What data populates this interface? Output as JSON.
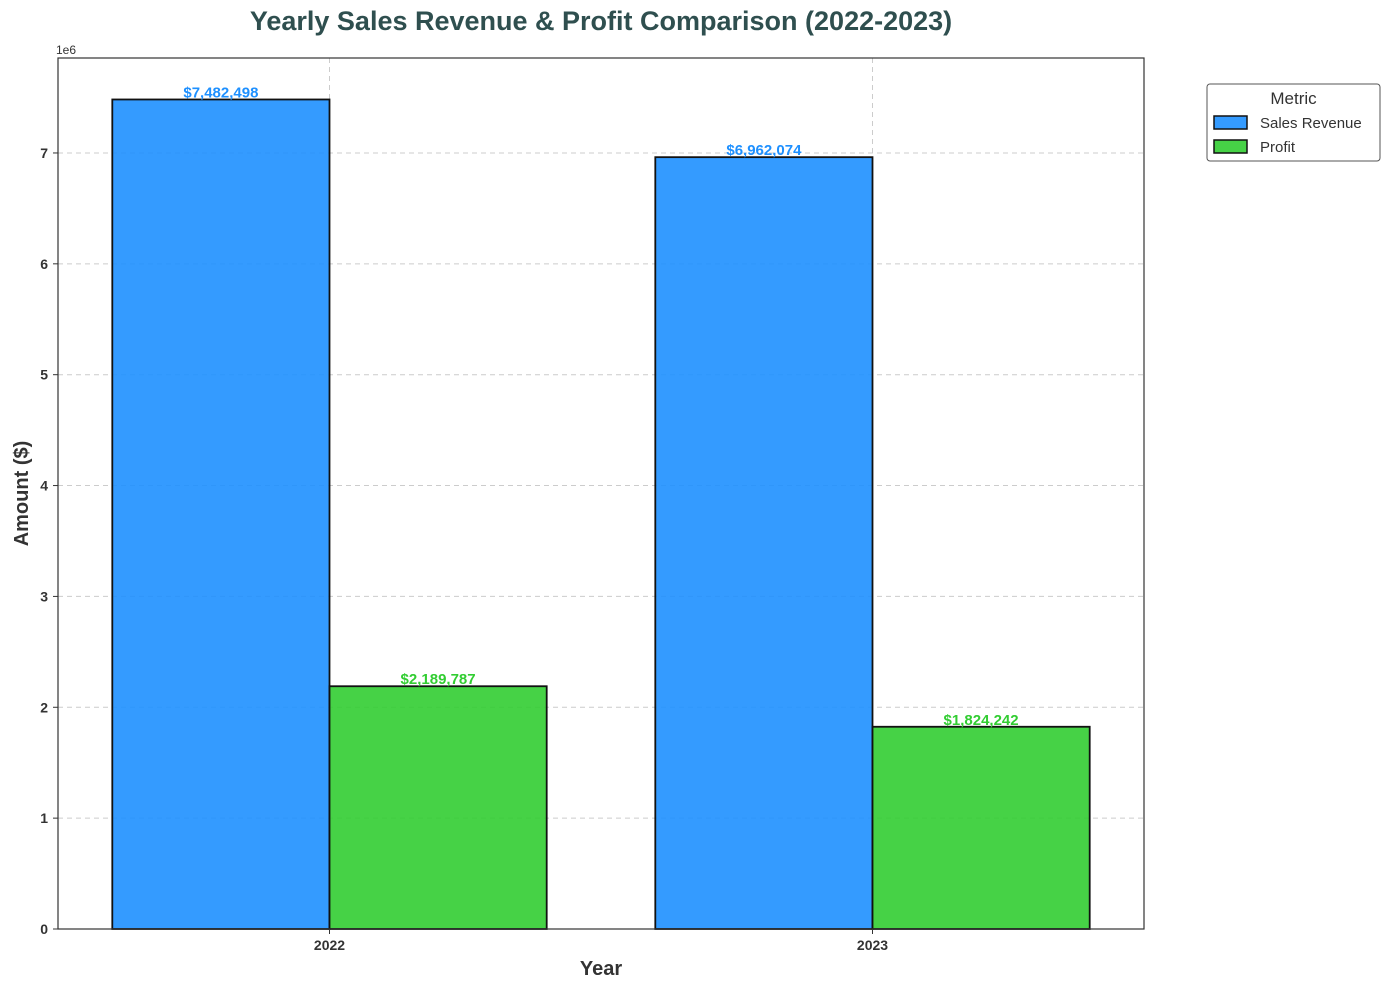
{
  "chart_data": {
    "type": "bar",
    "title": "Yearly Sales Revenue & Profit Comparison (2022-2023)",
    "xlabel": "Year",
    "ylabel": "Amount ($)",
    "y_offset_label": "1e6",
    "categories": [
      "2022",
      "2023"
    ],
    "series": [
      {
        "name": "Sales Revenue",
        "values": [
          7482498,
          6962074
        ],
        "labels": [
          "$7,482,498",
          "$6,962,074"
        ],
        "color": "#1e90ff"
      },
      {
        "name": "Profit",
        "values": [
          2189787,
          1824242
        ],
        "labels": [
          "$2,189,787",
          "$1,824,242"
        ],
        "color": "#32cd32"
      }
    ],
    "ylim": [
      0,
      7856623
    ],
    "yticks": [
      0,
      1000000,
      2000000,
      3000000,
      4000000,
      5000000,
      6000000,
      7000000
    ],
    "ytick_labels": [
      "0",
      "1",
      "2",
      "3",
      "4",
      "5",
      "6",
      "7"
    ],
    "grid": true,
    "legend": {
      "title": "Metric",
      "placement": "outside-top-right"
    }
  }
}
